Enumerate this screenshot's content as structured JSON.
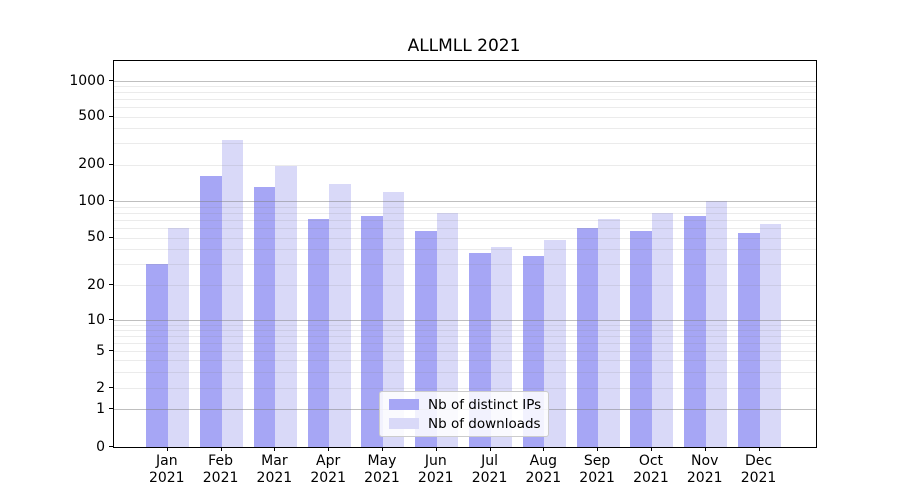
{
  "title": "ALLMLL 2021",
  "colors": {
    "ips_bar": "#a6a6f5",
    "downloads_bar": "#d9d9f8",
    "grid_major": "#808080",
    "grid_minor": "#e8e8e8",
    "legend_border": "#cccccc",
    "axis": "#000000"
  },
  "legend": {
    "items": [
      {
        "label": "Nb of distinct IPs",
        "series_key": "ips"
      },
      {
        "label": "Nb of downloads",
        "series_key": "downloads"
      }
    ]
  },
  "chart_data": {
    "type": "bar",
    "title": "ALLMLL 2021",
    "categories": [
      "Jan",
      "Feb",
      "Mar",
      "Apr",
      "May",
      "Jun",
      "Jul",
      "Aug",
      "Sep",
      "Oct",
      "Nov",
      "Dec"
    ],
    "category_year": "2021",
    "series": [
      {
        "name": "Nb of distinct IPs",
        "values": [
          30,
          160,
          130,
          72,
          75,
          57,
          37,
          35,
          60,
          57,
          75,
          55
        ]
      },
      {
        "name": "Nb of downloads",
        "values": [
          60,
          320,
          195,
          138,
          120,
          80,
          42,
          48,
          72,
          80,
          100,
          65
        ]
      }
    ],
    "yscale": "log-like with 0 baseline",
    "yticks": [
      0,
      1,
      2,
      5,
      10,
      20,
      50,
      100,
      200,
      500,
      1000
    ],
    "ylim": [
      0,
      1500
    ],
    "grid": "on",
    "legend_position": "lower center"
  }
}
